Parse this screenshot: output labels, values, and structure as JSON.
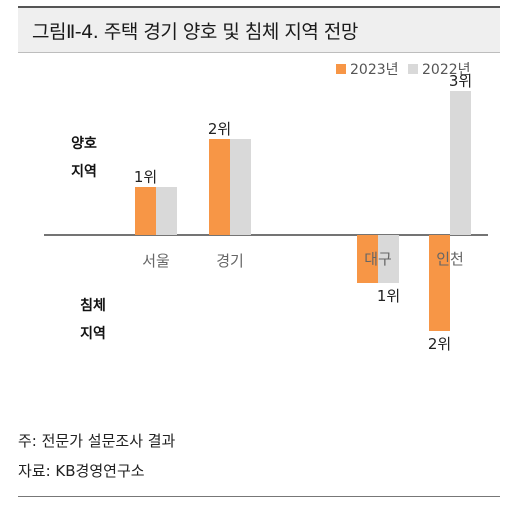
{
  "title": "그림Ⅱ-4. 주택 경기 양호 및 침체 지역 전망",
  "chart_data": {
    "type": "bar",
    "categories": [
      "서울",
      "경기",
      "대구",
      "인천"
    ],
    "series": [
      {
        "name": "2023년",
        "color": "#f79646",
        "values": [
          1,
          2,
          -1,
          -2
        ],
        "rank_labels": [
          "1위",
          "2위",
          "",
          "2위"
        ]
      },
      {
        "name": "2022년",
        "color": "#d9d9d9",
        "values": [
          1,
          2,
          -1,
          3
        ],
        "rank_labels": [
          "",
          "",
          "1위",
          "3위"
        ]
      }
    ],
    "legend_position": "top-right",
    "side_labels": {
      "positive": [
        "양호",
        "지역"
      ],
      "negative": [
        "침체",
        "지역"
      ]
    },
    "grid": false
  },
  "footnotes": {
    "note": "주: 전문가 설문조사 결과",
    "source": "자료: KB경영연구소"
  }
}
